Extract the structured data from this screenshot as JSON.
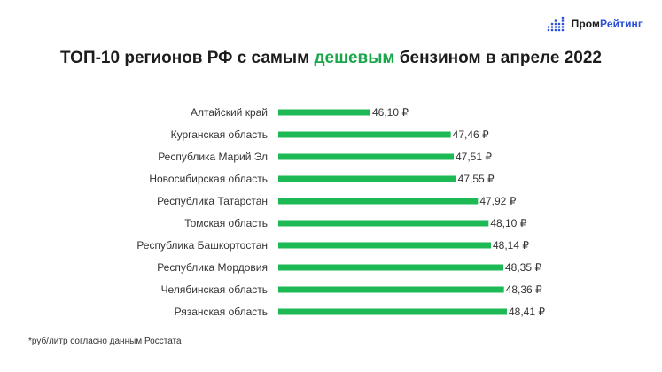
{
  "logo": {
    "part1": "Пром",
    "part2": "Рейтинг"
  },
  "title": {
    "before": "ТОП-10 регионов РФ с самым ",
    "highlight": "дешевым",
    "after": " бензином в апреле 2022"
  },
  "footnote": "*руб/литр согласно данным Росстата",
  "colors": {
    "bar": "#1db954",
    "accent": "#1aa64a",
    "logo_blue": "#2a4fd6"
  },
  "chart_data": {
    "type": "bar",
    "orientation": "horizontal",
    "categories": [
      "Алтайский край",
      "Курганская область",
      "Республика Марий Эл",
      "Новосибирская область",
      "Республика Татарстан",
      "Томская область",
      "Республика Башкортостан",
      "Республика Мордовия",
      "Челябинская область",
      "Рязанская область"
    ],
    "values": [
      46.1,
      47.46,
      47.51,
      47.55,
      47.92,
      48.1,
      48.14,
      48.35,
      48.36,
      48.41
    ],
    "value_labels": [
      "46,10 ₽",
      "47,46 ₽",
      "47,51 ₽",
      "47,55 ₽",
      "47,92 ₽",
      "48,10 ₽",
      "48,14 ₽",
      "48,35 ₽",
      "48,36 ₽",
      "48,41 ₽"
    ],
    "grid": false,
    "legend": "none"
  }
}
